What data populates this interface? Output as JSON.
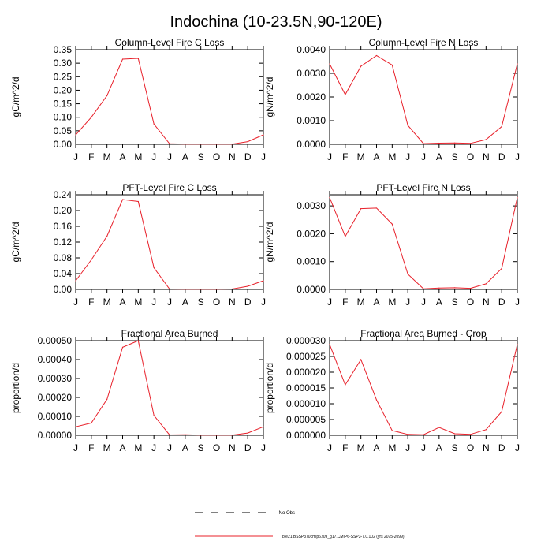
{
  "figure_title": "Indochina (10-23.5N,90-120E)",
  "colors": {
    "model_line": "#e8202a",
    "obs_line": "#000000",
    "axis": "#000000"
  },
  "legend": {
    "obs_label": "- No Obs",
    "model_label": "b.e21.BSSP370cmip6.f09_g17.CMIP6-SSP3-7.0.102 (yrs 2075-2099)"
  },
  "chart_data": [
    {
      "type": "line",
      "title": "Column-Level Fire C Loss",
      "ylabel": "gC/m^2/d",
      "ylim": [
        0,
        0.35
      ],
      "yticks": [
        0,
        0.05,
        0.1,
        0.15,
        0.2,
        0.25,
        0.3,
        0.35
      ],
      "ytick_labels": [
        "0.00",
        "0.05",
        "0.10",
        "0.15",
        "0.20",
        "0.25",
        "0.30",
        "0.35"
      ],
      "x": [
        "J",
        "F",
        "M",
        "A",
        "M",
        "J",
        "J",
        "A",
        "S",
        "O",
        "N",
        "D",
        "J"
      ],
      "series": [
        {
          "values": [
            0.035,
            0.1,
            0.18,
            0.315,
            0.318,
            0.075,
            0.002,
            0.001,
            0.001,
            0.001,
            0.001,
            0.01,
            0.035
          ]
        }
      ]
    },
    {
      "type": "line",
      "title": "Column-Level Fire N Loss",
      "ylabel": "gN/m^2/d",
      "ylim": [
        0,
        0.004
      ],
      "yticks": [
        0,
        0.001,
        0.002,
        0.003,
        0.004
      ],
      "ytick_labels": [
        "0.0000",
        "0.0010",
        "0.0020",
        "0.0030",
        "0.0040"
      ],
      "x": [
        "J",
        "F",
        "M",
        "A",
        "M",
        "J",
        "J",
        "A",
        "S",
        "O",
        "N",
        "D",
        "J"
      ],
      "series": [
        {
          "values": [
            0.0034,
            0.0021,
            0.0033,
            0.00375,
            0.00335,
            0.0008,
            3e-05,
            5e-05,
            6e-05,
            4e-05,
            0.0002,
            0.00075,
            0.0034
          ]
        }
      ]
    },
    {
      "type": "line",
      "title": "PFT-Level Fire C Loss",
      "ylabel": "gC/m^2/d",
      "ylim": [
        0,
        0.24
      ],
      "yticks": [
        0,
        0.04,
        0.08,
        0.12,
        0.16,
        0.2,
        0.24
      ],
      "ytick_labels": [
        "0.00",
        "0.04",
        "0.08",
        "0.12",
        "0.16",
        "0.20",
        "0.24"
      ],
      "x": [
        "J",
        "F",
        "M",
        "A",
        "M",
        "J",
        "J",
        "A",
        "S",
        "O",
        "N",
        "D",
        "J"
      ],
      "series": [
        {
          "values": [
            0.022,
            0.075,
            0.135,
            0.228,
            0.223,
            0.055,
            0.001,
            0.0005,
            0.0005,
            0.0005,
            0.001,
            0.008,
            0.022
          ]
        }
      ]
    },
    {
      "type": "line",
      "title": "PFT-Level Fire N Loss",
      "ylabel": "gN/m^2/d",
      "ylim": [
        0,
        0.0034
      ],
      "yticks": [
        0,
        0.001,
        0.002,
        0.003
      ],
      "ytick_labels": [
        "0.0000",
        "0.0010",
        "0.0020",
        "0.0030"
      ],
      "x": [
        "J",
        "F",
        "M",
        "A",
        "M",
        "J",
        "J",
        "A",
        "S",
        "O",
        "N",
        "D",
        "J"
      ],
      "series": [
        {
          "values": [
            0.0033,
            0.0019,
            0.0029,
            0.00292,
            0.00235,
            0.00055,
            2e-05,
            5e-05,
            6e-05,
            4e-05,
            0.0002,
            0.00075,
            0.0033
          ]
        }
      ]
    },
    {
      "type": "line",
      "title": "Fractional Area Burned",
      "ylabel": "proportion/d",
      "ylim": [
        0,
        0.0005
      ],
      "yticks": [
        0,
        0.0001,
        0.0002,
        0.0003,
        0.0004,
        0.0005
      ],
      "ytick_labels": [
        "0.00000",
        "0.00010",
        "0.00020",
        "0.00030",
        "0.00040",
        "0.00050"
      ],
      "x": [
        "J",
        "F",
        "M",
        "A",
        "M",
        "J",
        "J",
        "A",
        "S",
        "O",
        "N",
        "D",
        "J"
      ],
      "series": [
        {
          "values": [
            4.5e-05,
            6.5e-05,
            0.00019,
            0.000465,
            0.0005,
            0.000105,
            2e-06,
            3e-06,
            1e-06,
            1e-06,
            1e-06,
            1.2e-05,
            4.5e-05
          ]
        }
      ]
    },
    {
      "type": "line",
      "title": "Fractional Area Burned - Crop",
      "ylabel": "proportion/d",
      "ylim": [
        0,
        3e-05
      ],
      "yticks": [
        0,
        5e-06,
        1e-05,
        1.5e-05,
        2e-05,
        2.5e-05,
        3e-05
      ],
      "ytick_labels": [
        "0.000000",
        "0.000005",
        "0.000010",
        "0.000015",
        "0.000020",
        "0.000025",
        "0.000030"
      ],
      "x": [
        "J",
        "F",
        "M",
        "A",
        "M",
        "J",
        "J",
        "A",
        "S",
        "O",
        "N",
        "D",
        "J"
      ],
      "series": [
        {
          "values": [
            2.88e-05,
            1.6e-05,
            2.4e-05,
            1.12e-05,
            1.5e-06,
            3e-07,
            2e-07,
            2.5e-06,
            5e-07,
            3e-07,
            1.8e-06,
            7.5e-06,
            2.88e-05
          ]
        }
      ]
    }
  ]
}
